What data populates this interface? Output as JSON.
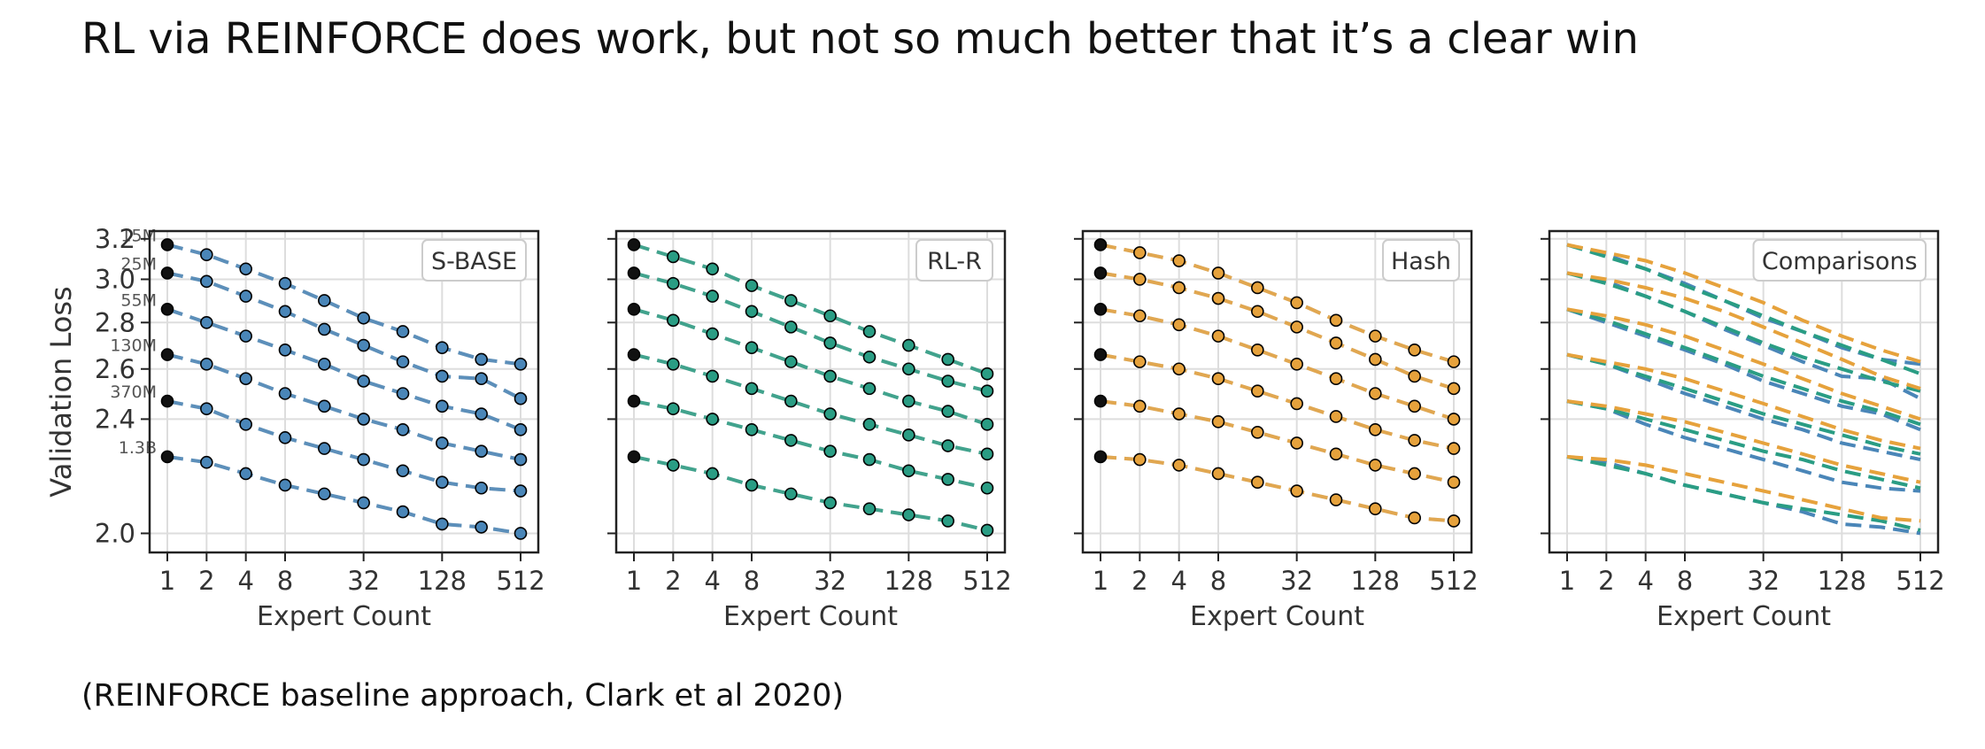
{
  "title": "RL via REINFORCE does work, but not so much better that it’s a clear win",
  "caption": "(REINFORCE baseline approach, Clark et al 2020)",
  "colors": {
    "sbase": "#4a86b8",
    "rlr": "#2a9d84",
    "hash": "#e6a23c",
    "dot_edge": "#000000",
    "grid": "#dddddd"
  },
  "chart_data": [
    {
      "type": "line",
      "title": "S-BASE",
      "xlabel": "Expert Count",
      "ylabel": "Validation Loss",
      "xscale": "log2",
      "yscale": "log",
      "xticks": [
        1,
        2,
        4,
        8,
        32,
        128,
        512
      ],
      "yticks": [
        2.0,
        2.4,
        2.6,
        2.8,
        3.0,
        3.2
      ],
      "xlim": [
        0.5,
        724
      ],
      "ylim": [
        1.94,
        3.24
      ],
      "grid": true,
      "legend": "top-right",
      "model_size_labels": [
        "15M",
        "25M",
        "55M",
        "130M",
        "370M",
        "1.3B"
      ],
      "x": [
        1,
        2,
        4,
        8,
        16,
        32,
        64,
        128,
        256,
        512
      ],
      "series": [
        {
          "name": "15M",
          "color": "#4a86b8",
          "values": [
            3.17,
            3.12,
            3.05,
            2.98,
            2.9,
            2.82,
            2.76,
            2.69,
            2.64,
            2.62
          ]
        },
        {
          "name": "25M",
          "color": "#4a86b8",
          "values": [
            3.03,
            2.99,
            2.92,
            2.85,
            2.77,
            2.7,
            2.63,
            2.57,
            2.56,
            2.48
          ]
        },
        {
          "name": "55M",
          "color": "#4a86b8",
          "values": [
            2.86,
            2.8,
            2.74,
            2.68,
            2.62,
            2.55,
            2.5,
            2.45,
            2.42,
            2.36
          ]
        },
        {
          "name": "130M",
          "color": "#4a86b8",
          "values": [
            2.66,
            2.62,
            2.56,
            2.5,
            2.45,
            2.4,
            2.36,
            2.31,
            2.28,
            2.25
          ]
        },
        {
          "name": "370M",
          "color": "#4a86b8",
          "values": [
            2.47,
            2.44,
            2.38,
            2.33,
            2.29,
            2.25,
            2.21,
            2.17,
            2.15,
            2.14
          ]
        },
        {
          "name": "1.3B",
          "color": "#4a86b8",
          "values": [
            2.26,
            2.24,
            2.2,
            2.16,
            2.13,
            2.1,
            2.07,
            2.03,
            2.02,
            2.0
          ]
        }
      ]
    },
    {
      "type": "line",
      "title": "RL-R",
      "xlabel": "Expert Count",
      "xscale": "log2",
      "yscale": "log",
      "xticks": [
        1,
        2,
        4,
        8,
        32,
        128,
        512
      ],
      "ylim": [
        1.94,
        3.24
      ],
      "grid": true,
      "legend": "top-right",
      "x": [
        1,
        2,
        4,
        8,
        16,
        32,
        64,
        128,
        256,
        512
      ],
      "series": [
        {
          "name": "15M",
          "color": "#2a9d84",
          "values": [
            3.17,
            3.11,
            3.05,
            2.97,
            2.9,
            2.83,
            2.76,
            2.7,
            2.64,
            2.58
          ]
        },
        {
          "name": "25M",
          "color": "#2a9d84",
          "values": [
            3.03,
            2.98,
            2.92,
            2.85,
            2.78,
            2.71,
            2.65,
            2.6,
            2.55,
            2.51
          ]
        },
        {
          "name": "55M",
          "color": "#2a9d84",
          "values": [
            2.86,
            2.81,
            2.75,
            2.69,
            2.63,
            2.57,
            2.52,
            2.47,
            2.43,
            2.38
          ]
        },
        {
          "name": "130M",
          "color": "#2a9d84",
          "values": [
            2.66,
            2.62,
            2.57,
            2.52,
            2.47,
            2.42,
            2.38,
            2.34,
            2.3,
            2.27
          ]
        },
        {
          "name": "370M",
          "color": "#2a9d84",
          "values": [
            2.47,
            2.44,
            2.4,
            2.36,
            2.32,
            2.28,
            2.25,
            2.21,
            2.18,
            2.15
          ]
        },
        {
          "name": "1.3B",
          "color": "#2a9d84",
          "values": [
            2.26,
            2.23,
            2.2,
            2.16,
            2.13,
            2.1,
            2.08,
            2.06,
            2.04,
            2.01
          ]
        }
      ]
    },
    {
      "type": "line",
      "title": "Hash",
      "xlabel": "Expert Count",
      "xscale": "log2",
      "yscale": "log",
      "xticks": [
        1,
        2,
        4,
        8,
        32,
        128,
        512
      ],
      "ylim": [
        1.94,
        3.24
      ],
      "grid": true,
      "legend": "top-right",
      "x": [
        1,
        2,
        4,
        8,
        16,
        32,
        64,
        128,
        256,
        512
      ],
      "series": [
        {
          "name": "15M",
          "color": "#e6a23c",
          "values": [
            3.17,
            3.13,
            3.09,
            3.03,
            2.96,
            2.89,
            2.81,
            2.74,
            2.68,
            2.63
          ]
        },
        {
          "name": "25M",
          "color": "#e6a23c",
          "values": [
            3.03,
            3.0,
            2.96,
            2.91,
            2.85,
            2.78,
            2.71,
            2.64,
            2.57,
            2.52
          ]
        },
        {
          "name": "55M",
          "color": "#e6a23c",
          "values": [
            2.86,
            2.83,
            2.79,
            2.74,
            2.68,
            2.62,
            2.56,
            2.5,
            2.45,
            2.4
          ]
        },
        {
          "name": "130M",
          "color": "#e6a23c",
          "values": [
            2.66,
            2.63,
            2.6,
            2.56,
            2.51,
            2.46,
            2.41,
            2.36,
            2.32,
            2.29
          ]
        },
        {
          "name": "370M",
          "color": "#e6a23c",
          "values": [
            2.47,
            2.45,
            2.42,
            2.39,
            2.35,
            2.31,
            2.27,
            2.23,
            2.2,
            2.17
          ]
        },
        {
          "name": "1.3B",
          "color": "#e6a23c",
          "values": [
            2.26,
            2.25,
            2.23,
            2.2,
            2.17,
            2.14,
            2.11,
            2.08,
            2.05,
            2.04
          ]
        }
      ]
    },
    {
      "type": "line",
      "title": "Comparisons",
      "xlabel": "Expert Count",
      "xscale": "log2",
      "yscale": "log",
      "xticks": [
        1,
        2,
        4,
        8,
        32,
        128,
        512
      ],
      "ylim": [
        1.94,
        3.24
      ],
      "grid": true,
      "legend": "top-right",
      "note": "dashed fitted curves of S-BASE (blue), RL-R (green) and Hash (orange) for each model size"
    }
  ]
}
